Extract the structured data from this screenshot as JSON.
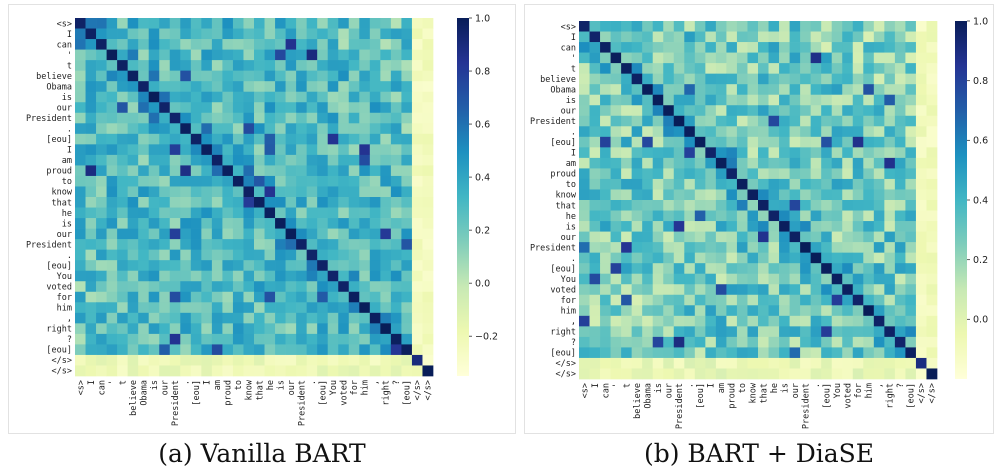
{
  "chart_data": [
    {
      "type": "heatmap",
      "caption": "(a) Vanilla BART",
      "tokens": [
        "<s>",
        "I",
        "can",
        "'",
        "t",
        "believe",
        "Obama",
        "is",
        "our",
        "President",
        ".",
        "[eou]",
        "I",
        "am",
        "proud",
        "to",
        "know",
        "that",
        "he",
        "is",
        "our",
        "President",
        ".",
        "[eou]",
        "You",
        "voted",
        "for",
        "him",
        ",",
        "right",
        "?",
        "[eou]",
        "</s>",
        "</s>"
      ],
      "colorbar": {
        "min": -0.35,
        "max": 1.0,
        "ticks": [
          "1.0",
          "0.8",
          "0.6",
          "0.4",
          "0.2",
          "0.0",
          "-0.2"
        ]
      },
      "seed": 7
    },
    {
      "type": "heatmap",
      "caption": "(b) BART + DiaSE",
      "tokens": [
        "<s>",
        "I",
        "can",
        "'",
        "t",
        "believe",
        "Obama",
        "is",
        "our",
        "President",
        ".",
        "[eou]",
        "I",
        "am",
        "proud",
        "to",
        "know",
        "that",
        "he",
        "is",
        "our",
        "President",
        ".",
        "[eou]",
        "You",
        "voted",
        "for",
        "him",
        ",",
        "right",
        "?",
        "[eou]",
        "</s>",
        "</s>"
      ],
      "colorbar": {
        "min": -0.2,
        "max": 1.0,
        "ticks": [
          "1.0",
          "0.8",
          "0.6",
          "0.4",
          "0.2",
          "0.0"
        ]
      },
      "seed": 23
    }
  ],
  "colors": {
    "scale": [
      "#ffffd9",
      "#edf8b1",
      "#c7e9b4",
      "#7fcdbb",
      "#41b6c4",
      "#1d91c0",
      "#225ea8",
      "#253494",
      "#081d58"
    ]
  }
}
